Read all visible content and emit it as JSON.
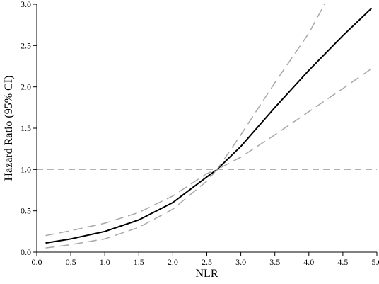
{
  "chart_data": {
    "type": "line",
    "xlabel": "NLR",
    "ylabel": "Hazard Ratio (95% CI)",
    "xlim": [
      0.0,
      5.0
    ],
    "ylim": [
      0.0,
      3.0
    ],
    "x_ticks": [
      "0.0",
      "0.5",
      "1.0",
      "1.5",
      "2.0",
      "2.5",
      "3.0",
      "3.5",
      "4.0",
      "4.5",
      "5.0"
    ],
    "y_ticks": [
      "0.0",
      "0.5",
      "1.0",
      "1.5",
      "2.0",
      "2.5",
      "3.0"
    ],
    "reference_line": {
      "y": 1.0,
      "style": "dashed",
      "color": "#b0b0b0"
    },
    "grid": false,
    "series": [
      {
        "role": "estimate",
        "style": "solid",
        "color": "#000000",
        "x": [
          0.13,
          0.5,
          1.0,
          1.5,
          2.0,
          2.5,
          2.65,
          3.0,
          3.5,
          4.0,
          4.5,
          4.92
        ],
        "y": [
          0.11,
          0.16,
          0.25,
          0.39,
          0.6,
          0.91,
          1.0,
          1.28,
          1.75,
          2.2,
          2.62,
          2.95
        ]
      },
      {
        "role": "upper_ci",
        "style": "dashed",
        "color": "#a8a8a8",
        "x": [
          0.13,
          0.5,
          1.0,
          1.5,
          2.0,
          2.5,
          2.65,
          3.0,
          3.5,
          4.0,
          4.23
        ],
        "y": [
          0.2,
          0.26,
          0.35,
          0.48,
          0.68,
          0.95,
          1.0,
          1.42,
          2.05,
          2.65,
          3.0
        ]
      },
      {
        "role": "lower_ci",
        "style": "dashed",
        "color": "#a8a8a8",
        "x": [
          0.13,
          0.5,
          1.0,
          1.5,
          2.0,
          2.5,
          2.65,
          3.0,
          3.5,
          4.0,
          4.5,
          4.92
        ],
        "y": [
          0.05,
          0.09,
          0.16,
          0.3,
          0.52,
          0.86,
          1.0,
          1.15,
          1.42,
          1.7,
          1.98,
          2.22
        ]
      }
    ]
  }
}
